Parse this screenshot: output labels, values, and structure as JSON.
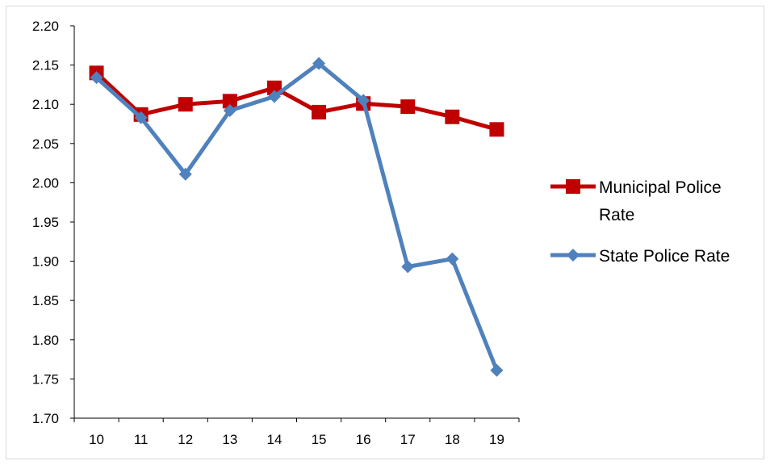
{
  "chart_data": {
    "type": "line",
    "x": [
      "10",
      "11",
      "12",
      "13",
      "14",
      "15",
      "16",
      "17",
      "18",
      "19"
    ],
    "ylim": [
      1.7,
      2.2
    ],
    "yticks": [
      "1.70",
      "1.75",
      "1.80",
      "1.85",
      "1.90",
      "1.95",
      "2.00",
      "2.05",
      "2.10",
      "2.15",
      "2.20"
    ],
    "grid": false,
    "legend_position": "right",
    "series": [
      {
        "name": "Municipal Police Rate",
        "legend_lines": [
          "Municipal Police",
          "Rate"
        ],
        "values": [
          2.14,
          2.087,
          2.1,
          2.104,
          2.121,
          2.09,
          2.101,
          2.097,
          2.084,
          2.068
        ],
        "color": "#c00000",
        "marker": "square"
      },
      {
        "name": "State Police Rate",
        "legend_lines": [
          "State Police Rate"
        ],
        "values": [
          2.134,
          2.083,
          2.011,
          2.092,
          2.11,
          2.152,
          2.105,
          1.893,
          1.903,
          1.761
        ],
        "color": "#4f81bd",
        "marker": "diamond"
      }
    ]
  }
}
